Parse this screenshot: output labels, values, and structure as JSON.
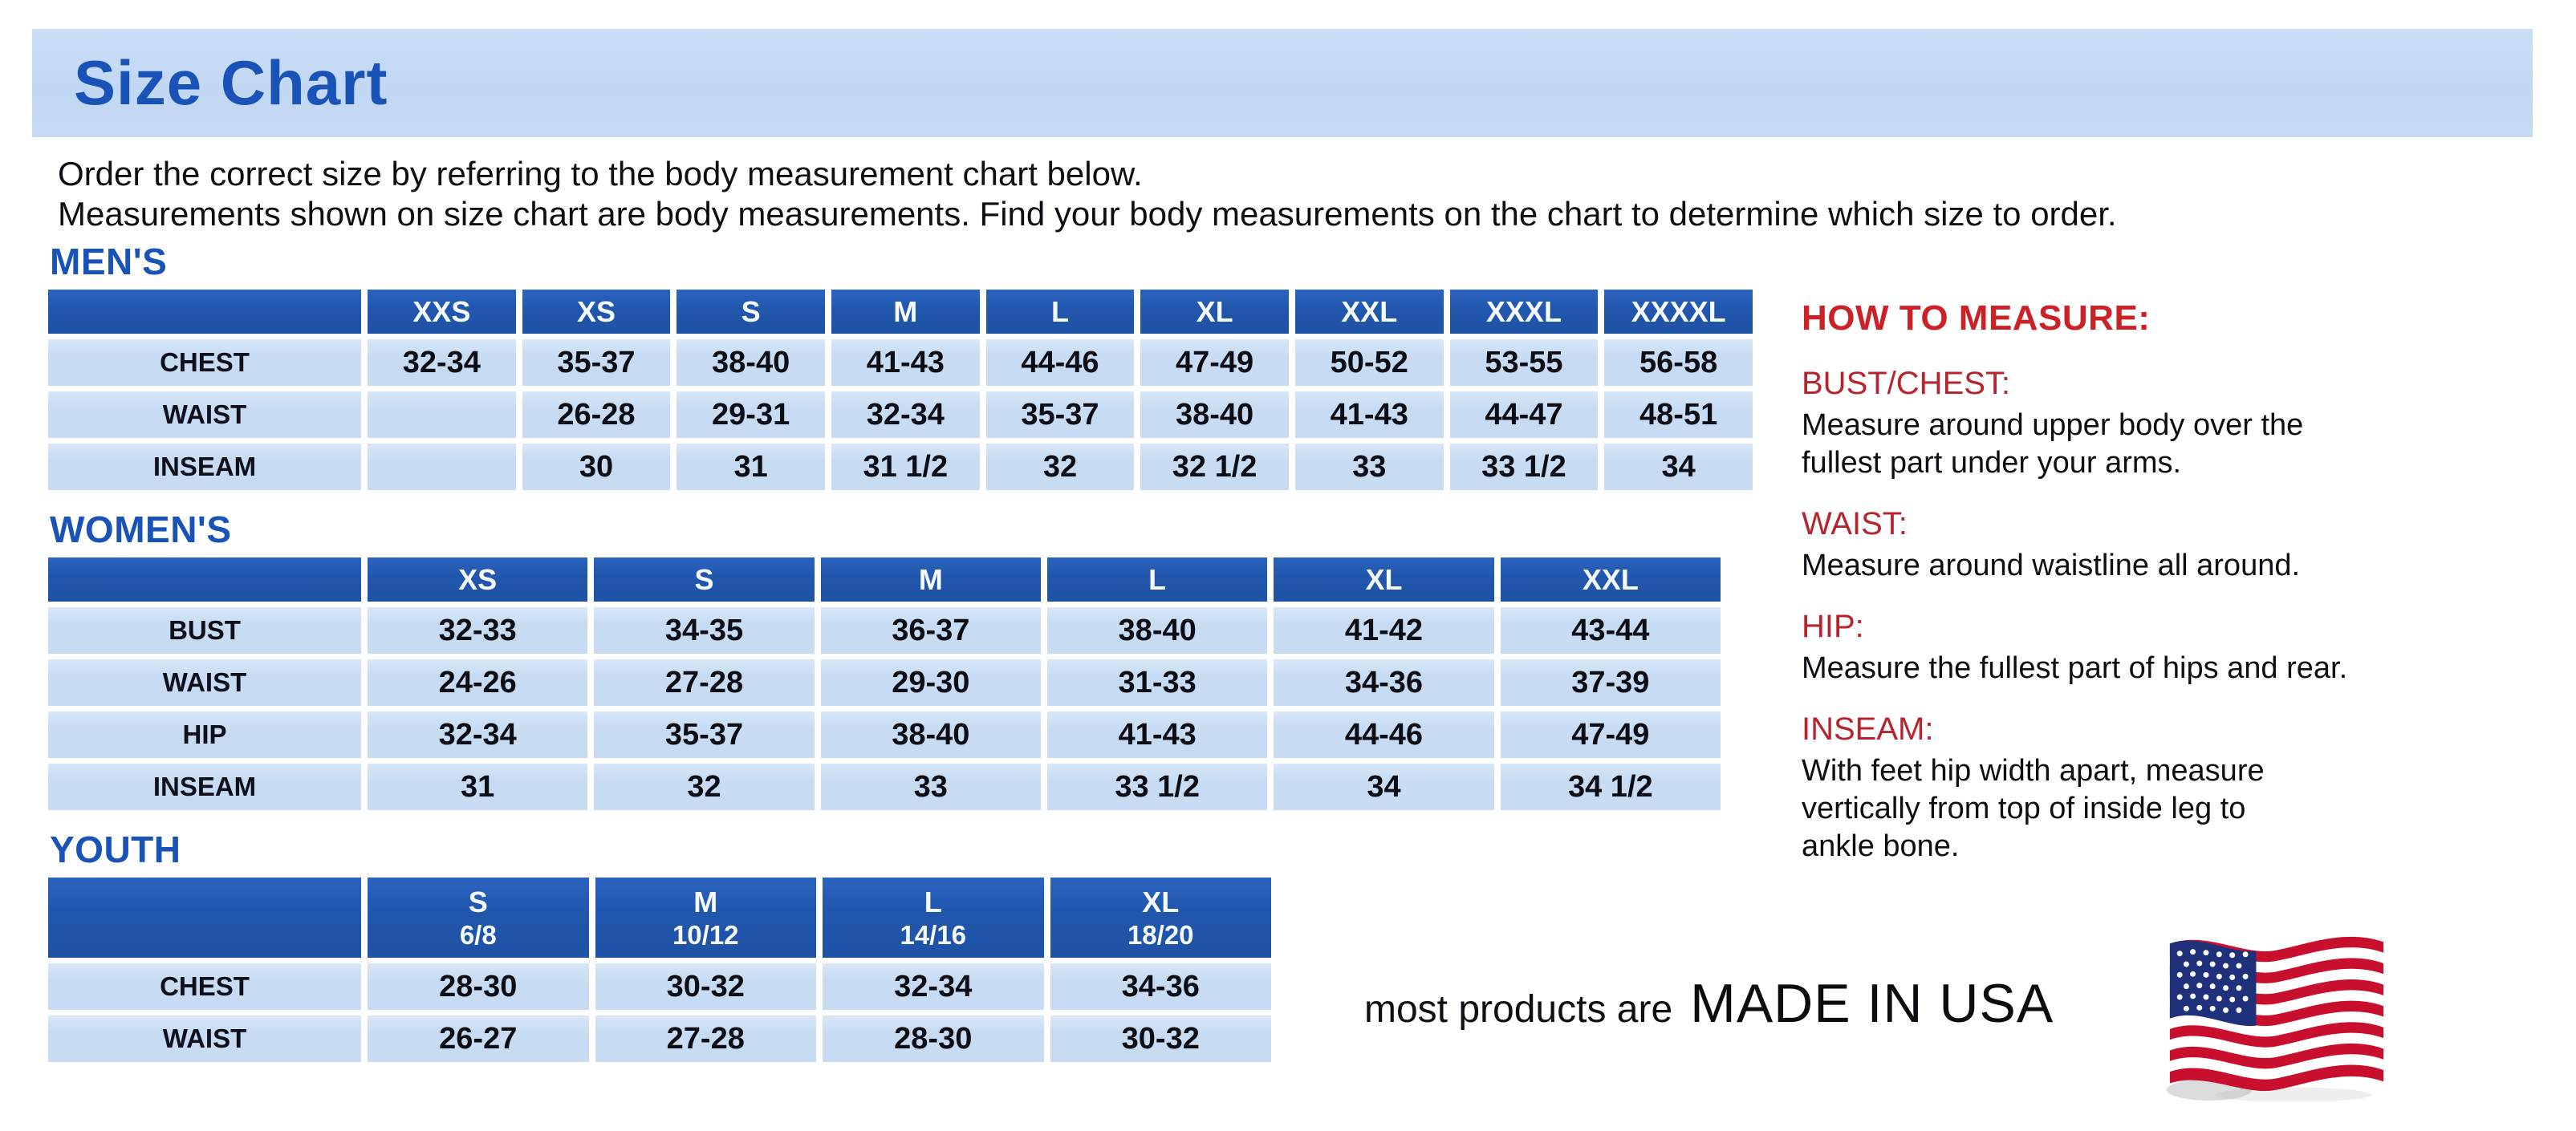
{
  "page": {
    "title": "Size Chart",
    "intro_line1": "Order the correct size by referring to the body measurement chart below.",
    "intro_line2": "Measurements shown on size chart are body measurements.  Find your body measurements on the chart to determine which size to order."
  },
  "tables": {
    "mens": {
      "heading": "MEN'S",
      "columns": [
        "XXS",
        "XS",
        "S",
        "M",
        "L",
        "XL",
        "XXL",
        "XXXL",
        "XXXXL"
      ],
      "rows": [
        {
          "label": "CHEST",
          "values": [
            "32-34",
            "35-37",
            "38-40",
            "41-43",
            "44-46",
            "47-49",
            "50-52",
            "53-55",
            "56-58"
          ]
        },
        {
          "label": "WAIST",
          "values": [
            "",
            "26-28",
            "29-31",
            "32-34",
            "35-37",
            "38-40",
            "41-43",
            "44-47",
            "48-51"
          ]
        },
        {
          "label": "INSEAM",
          "values": [
            "",
            "30",
            "31",
            "31 1/2",
            "32",
            "32 1/2",
            "33",
            "33 1/2",
            "34"
          ]
        }
      ]
    },
    "womens": {
      "heading": "WOMEN'S",
      "columns": [
        "XS",
        "S",
        "M",
        "L",
        "XL",
        "XXL"
      ],
      "rows": [
        {
          "label": "BUST",
          "values": [
            "32-33",
            "34-35",
            "36-37",
            "38-40",
            "41-42",
            "43-44"
          ]
        },
        {
          "label": "WAIST",
          "values": [
            "24-26",
            "27-28",
            "29-30",
            "31-33",
            "34-36",
            "37-39"
          ]
        },
        {
          "label": "HIP",
          "values": [
            "32-34",
            "35-37",
            "38-40",
            "41-43",
            "44-46",
            "47-49"
          ]
        },
        {
          "label": "INSEAM",
          "values": [
            "31",
            "32",
            "33",
            "33 1/2",
            "34",
            "34 1/2"
          ]
        }
      ]
    },
    "youth": {
      "heading": "YOUTH",
      "columns": [
        {
          "size": "S",
          "range": "6/8"
        },
        {
          "size": "M",
          "range": "10/12"
        },
        {
          "size": "L",
          "range": "14/16"
        },
        {
          "size": "XL",
          "range": "18/20"
        }
      ],
      "rows": [
        {
          "label": "CHEST",
          "values": [
            "28-30",
            "30-32",
            "32-34",
            "34-36"
          ]
        },
        {
          "label": "WAIST",
          "values": [
            "26-27",
            "27-28",
            "28-30",
            "30-32"
          ]
        }
      ]
    }
  },
  "how_to_measure": {
    "heading": "HOW TO MEASURE:",
    "sections": [
      {
        "term": "BUST/CHEST:",
        "description": "Measure around upper body over the\nfullest part under your arms."
      },
      {
        "term": "WAIST:",
        "description": "Measure around waistline all around."
      },
      {
        "term": "HIP:",
        "description": "Measure the fullest part of hips and rear."
      },
      {
        "term": "INSEAM:",
        "description": "With feet hip width apart, measure\nvertically from top of inside leg to\nankle bone."
      }
    ]
  },
  "footer": {
    "made_in_prefix": "most products are",
    "made_in_main": "MADE IN USA",
    "flag_icon": "usa-flag-icon"
  },
  "colors": {
    "banner_background": "#c4d9f4",
    "title_blue": "#1a53b7",
    "table_header_blue": "#2056ac",
    "table_cell_blue": "#c7dcf3",
    "heading_red": "#cc2127",
    "term_red": "#b6242e",
    "text_black": "#0e0e14",
    "flag_red": "#c8102e",
    "flag_navy": "#20317c"
  }
}
